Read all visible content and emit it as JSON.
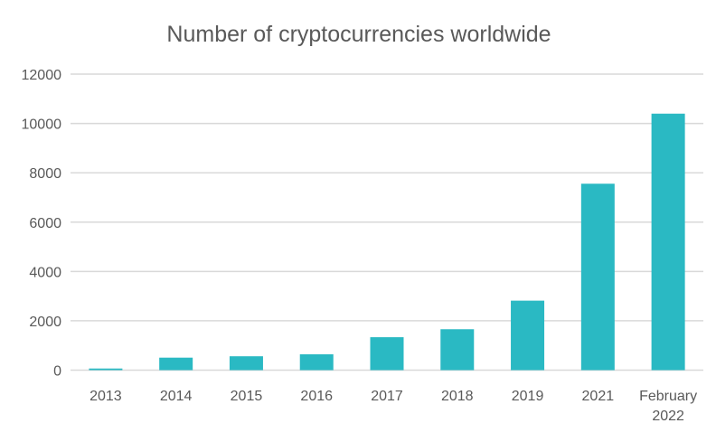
{
  "chart_data": {
    "type": "bar",
    "title": "Number of cryptocurrencies worldwide",
    "xlabel": "",
    "ylabel": "",
    "categories": [
      "2013",
      "2014",
      "2015",
      "2016",
      "2017",
      "2018",
      "2019",
      "2021",
      "February 2022"
    ],
    "values": [
      66,
      506,
      562,
      644,
      1335,
      1658,
      2817,
      7557,
      10397
    ],
    "ylim": [
      0,
      12000
    ],
    "yticks": [
      "0",
      "2000",
      "4000",
      "6000",
      "8000",
      "10000",
      "12000"
    ],
    "grid": true,
    "legend": "none",
    "colors": {
      "bar": "#2ab9c3",
      "grid": "#d9d9d9",
      "text": "#595959"
    }
  }
}
